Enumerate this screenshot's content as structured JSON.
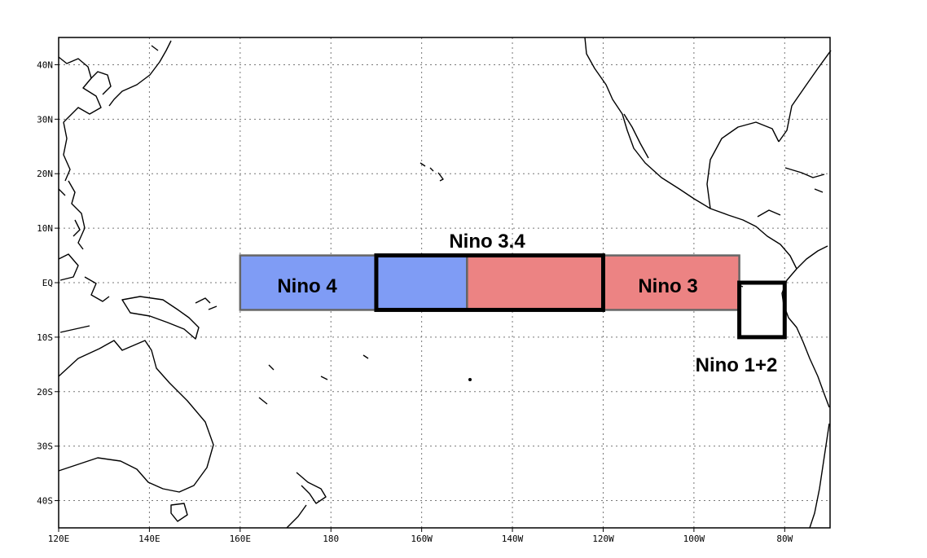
{
  "map": {
    "projection": "equirectangular",
    "lon_range": [
      120,
      290
    ],
    "lat_range": [
      -45,
      45
    ],
    "grid": "dotted",
    "lon_ticks": [
      {
        "value": 120,
        "label": "120E"
      },
      {
        "value": 140,
        "label": "140E"
      },
      {
        "value": 160,
        "label": "160E"
      },
      {
        "value": 180,
        "label": "180"
      },
      {
        "value": 200,
        "label": "160W"
      },
      {
        "value": 220,
        "label": "140W"
      },
      {
        "value": 240,
        "label": "120W"
      },
      {
        "value": 260,
        "label": "100W"
      },
      {
        "value": 280,
        "label": "80W"
      }
    ],
    "lat_ticks": [
      {
        "value": 40,
        "label": "40N"
      },
      {
        "value": 30,
        "label": "30N"
      },
      {
        "value": 20,
        "label": "20N"
      },
      {
        "value": 10,
        "label": "10N"
      },
      {
        "value": 0,
        "label": "EQ"
      },
      {
        "value": -10,
        "label": "10S"
      },
      {
        "value": -20,
        "label": "20S"
      },
      {
        "value": -30,
        "label": "30S"
      },
      {
        "value": -40,
        "label": "40S"
      }
    ],
    "regions": [
      {
        "name": "Nino 4",
        "lon": [
          160,
          210
        ],
        "lat": [
          -5,
          5
        ],
        "fill": "#7f9cf5",
        "style": "filled"
      },
      {
        "name": "Nino 3",
        "lon": [
          210,
          270
        ],
        "lat": [
          -5,
          5
        ],
        "fill": "#ec8383",
        "style": "filled"
      },
      {
        "name": "Nino 3.4",
        "lon": [
          190,
          240
        ],
        "lat": [
          -5,
          5
        ],
        "style": "outline"
      },
      {
        "name": "Nino 1+2",
        "lon": [
          270,
          280
        ],
        "lat": [
          -10,
          0
        ],
        "style": "outline"
      }
    ],
    "colors": {
      "nino4": "#7f9cf5",
      "nino3": "#ec8383",
      "outline": "#000000",
      "frame": "#000000"
    }
  }
}
